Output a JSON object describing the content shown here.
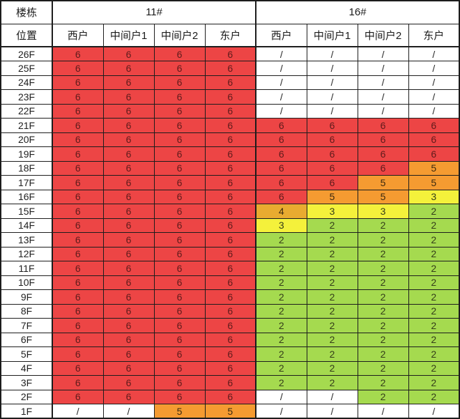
{
  "chart_data": {
    "type": "heatmap",
    "corner_labels": [
      "楼栋",
      "位置"
    ],
    "column_groups": [
      {
        "name": "11#",
        "columns": [
          "西户",
          "中间户1",
          "中间户2",
          "东户"
        ]
      },
      {
        "name": "16#",
        "columns": [
          "西户",
          "中间户1",
          "中间户2",
          "东户"
        ]
      }
    ],
    "no_data_symbol": "/",
    "value_colors": {
      "6": "#ED4545",
      "5": "#F59B31",
      "4": "#E9AB30",
      "3": "#F4F13B",
      "2": "#A5DA4F",
      "/": "#FFFFFF"
    },
    "rows": [
      {
        "floor": "26F",
        "cells": [
          "6",
          "6",
          "6",
          "6",
          "/",
          "/",
          "/",
          "/"
        ]
      },
      {
        "floor": "25F",
        "cells": [
          "6",
          "6",
          "6",
          "6",
          "/",
          "/",
          "/",
          "/"
        ]
      },
      {
        "floor": "24F",
        "cells": [
          "6",
          "6",
          "6",
          "6",
          "/",
          "/",
          "/",
          "/"
        ]
      },
      {
        "floor": "23F",
        "cells": [
          "6",
          "6",
          "6",
          "6",
          "/",
          "/",
          "/",
          "/"
        ]
      },
      {
        "floor": "22F",
        "cells": [
          "6",
          "6",
          "6",
          "6",
          "/",
          "/",
          "/",
          "/"
        ]
      },
      {
        "floor": "21F",
        "cells": [
          "6",
          "6",
          "6",
          "6",
          "6",
          "6",
          "6",
          "6"
        ]
      },
      {
        "floor": "20F",
        "cells": [
          "6",
          "6",
          "6",
          "6",
          "6",
          "6",
          "6",
          "6"
        ]
      },
      {
        "floor": "19F",
        "cells": [
          "6",
          "6",
          "6",
          "6",
          "6",
          "6",
          "6",
          "6"
        ]
      },
      {
        "floor": "18F",
        "cells": [
          "6",
          "6",
          "6",
          "6",
          "6",
          "6",
          "6",
          "5"
        ]
      },
      {
        "floor": "17F",
        "cells": [
          "6",
          "6",
          "6",
          "6",
          "6",
          "6",
          "5",
          "5"
        ]
      },
      {
        "floor": "16F",
        "cells": [
          "6",
          "6",
          "6",
          "6",
          "6",
          "5",
          "5",
          "3"
        ]
      },
      {
        "floor": "15F",
        "cells": [
          "6",
          "6",
          "6",
          "6",
          "4",
          "3",
          "3",
          "2"
        ]
      },
      {
        "floor": "14F",
        "cells": [
          "6",
          "6",
          "6",
          "6",
          "3",
          "2",
          "2",
          "2"
        ]
      },
      {
        "floor": "13F",
        "cells": [
          "6",
          "6",
          "6",
          "6",
          "2",
          "2",
          "2",
          "2"
        ]
      },
      {
        "floor": "12F",
        "cells": [
          "6",
          "6",
          "6",
          "6",
          "2",
          "2",
          "2",
          "2"
        ]
      },
      {
        "floor": "11F",
        "cells": [
          "6",
          "6",
          "6",
          "6",
          "2",
          "2",
          "2",
          "2"
        ]
      },
      {
        "floor": "10F",
        "cells": [
          "6",
          "6",
          "6",
          "6",
          "2",
          "2",
          "2",
          "2"
        ]
      },
      {
        "floor": "9F",
        "cells": [
          "6",
          "6",
          "6",
          "6",
          "2",
          "2",
          "2",
          "2"
        ]
      },
      {
        "floor": "8F",
        "cells": [
          "6",
          "6",
          "6",
          "6",
          "2",
          "2",
          "2",
          "2"
        ]
      },
      {
        "floor": "7F",
        "cells": [
          "6",
          "6",
          "6",
          "6",
          "2",
          "2",
          "2",
          "2"
        ]
      },
      {
        "floor": "6F",
        "cells": [
          "6",
          "6",
          "6",
          "6",
          "2",
          "2",
          "2",
          "2"
        ]
      },
      {
        "floor": "5F",
        "cells": [
          "6",
          "6",
          "6",
          "6",
          "2",
          "2",
          "2",
          "2"
        ]
      },
      {
        "floor": "4F",
        "cells": [
          "6",
          "6",
          "6",
          "6",
          "2",
          "2",
          "2",
          "2"
        ]
      },
      {
        "floor": "3F",
        "cells": [
          "6",
          "6",
          "6",
          "6",
          "2",
          "2",
          "2",
          "2"
        ]
      },
      {
        "floor": "2F",
        "cells": [
          "6",
          "6",
          "6",
          "6",
          "/",
          "/",
          "2",
          "2"
        ]
      },
      {
        "floor": "1F",
        "cells": [
          "/",
          "/",
          "5",
          "5",
          "/",
          "/",
          "/",
          "/"
        ]
      }
    ]
  }
}
